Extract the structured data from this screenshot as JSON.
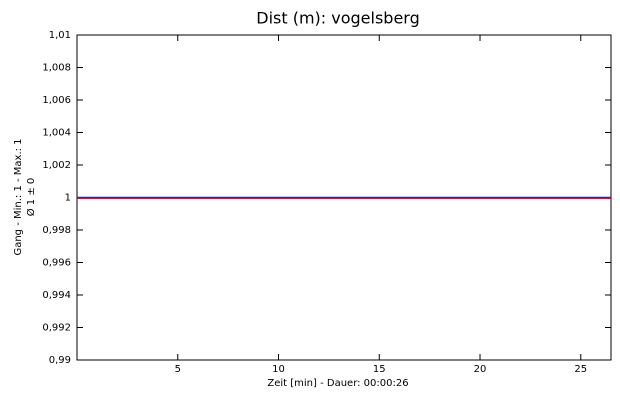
{
  "chart_data": {
    "type": "line",
    "title": "Dist (m): vogelsberg",
    "x_label": "Zeit [min] - Dauer: 00:00:26",
    "y_label": [
      "Gang - Min.: 1 - Max.: 1",
      "Ø 1 ± 0"
    ],
    "x": [
      0,
      26.5
    ],
    "series": [
      {
        "color": "#2020e0",
        "values": [
          1,
          1
        ]
      }
    ],
    "xlim": [
      0,
      26.5
    ],
    "xticks": [
      5,
      10,
      15,
      20,
      25
    ],
    "ylim": [
      0.99,
      1.01
    ],
    "yticks": [
      {
        "value": 0.99,
        "label": "0,99"
      },
      {
        "value": 0.992,
        "label": "0,992"
      },
      {
        "value": 0.994,
        "label": "0,994"
      },
      {
        "value": 0.996,
        "label": "0,996"
      },
      {
        "value": 0.998,
        "label": "0,998"
      },
      1,
      {
        "value": 1.002,
        "label": "1,002"
      },
      {
        "value": 1.004,
        "label": "1,004"
      },
      {
        "value": 1.006,
        "label": "1,006"
      },
      {
        "value": 1.008,
        "label": "1,008"
      },
      {
        "value": 1.01,
        "label": "1,01"
      }
    ],
    "grid": false
  }
}
